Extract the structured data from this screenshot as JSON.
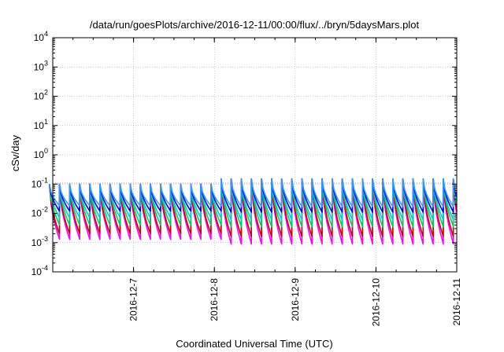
{
  "chart_data": {
    "type": "line",
    "title": "/data/run/goesPlots/archive/2016-12-11/00:00/flux/../bryn/5daysMars.plot",
    "xlabel": "Coordinated Universal Time (UTC)",
    "ylabel": "cSv/day",
    "yscale": "log",
    "ylim": [
      0.0001,
      10000
    ],
    "y_ticks": [
      {
        "base": "10",
        "exp": "4"
      },
      {
        "base": "10",
        "exp": "3"
      },
      {
        "base": "10",
        "exp": "2"
      },
      {
        "base": "10",
        "exp": "1"
      },
      {
        "base": "10",
        "exp": "0"
      },
      {
        "base": "10",
        "exp": "-1"
      },
      {
        "base": "10",
        "exp": "-2"
      },
      {
        "base": "10",
        "exp": "-3"
      },
      {
        "base": "10",
        "exp": "-4"
      }
    ],
    "xlim": [
      "2016-12-06 00:00",
      "2016-12-11 00:00"
    ],
    "x_ticks": [
      "2016-12-7",
      "2016-12-8",
      "2016-12-9",
      "2016-12-10",
      "2016-12-11"
    ],
    "grid": true,
    "reference_line": 0.1,
    "pattern": {
      "cycles_per_day": 8,
      "step_up_at": "2016-12-08 02:00",
      "peak_before_step": 0.1,
      "peak_after_step": 0.15
    },
    "series": [
      {
        "color": "#ff00ff",
        "trough_before": 0.0013,
        "trough_after": 0.0009
      },
      {
        "color": "#cc0000",
        "trough_before": 0.002,
        "trough_after": 0.0016
      },
      {
        "color": "#00cc66",
        "trough_before": 0.004,
        "trough_after": 0.0035
      },
      {
        "color": "#00cccc",
        "trough_before": 0.007,
        "trough_after": 0.006
      },
      {
        "color": "#0000ee",
        "trough_before": 0.012,
        "trough_after": 0.011
      },
      {
        "color": "#3399ff",
        "trough_before": 0.018,
        "trough_after": 0.017
      }
    ]
  }
}
